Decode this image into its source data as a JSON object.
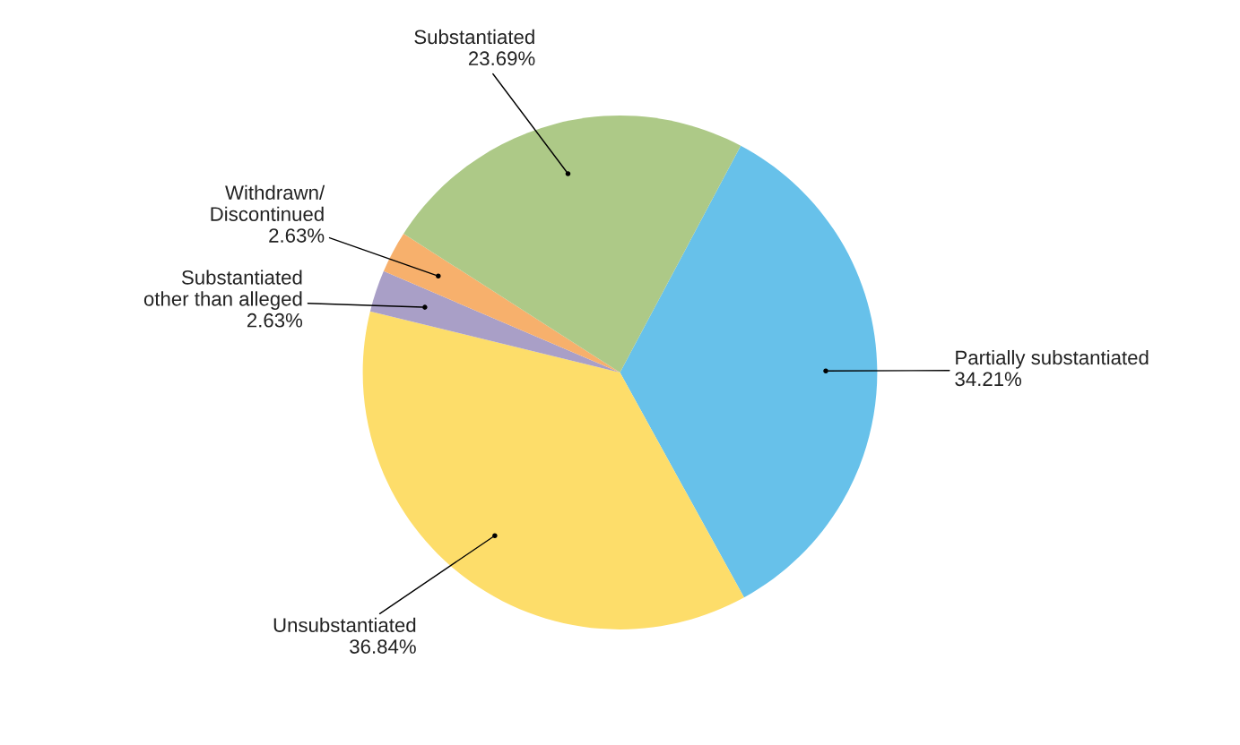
{
  "chart_data": {
    "type": "pie",
    "categories": [
      "Partially substantiated",
      "Unsubstantiated",
      "Substantiated\nother than alleged",
      "Withdrawn/\nDiscontinued",
      "Substantiated"
    ],
    "values": [
      34.21,
      36.84,
      2.63,
      2.63,
      23.69
    ],
    "value_labels": [
      "34.21%",
      "36.84%",
      "2.63%",
      "2.63%",
      "23.69%"
    ],
    "colors": [
      "#67c1ea",
      "#fddd6a",
      "#a99fc7",
      "#f7b06c",
      "#adc987"
    ],
    "legend": false
  }
}
